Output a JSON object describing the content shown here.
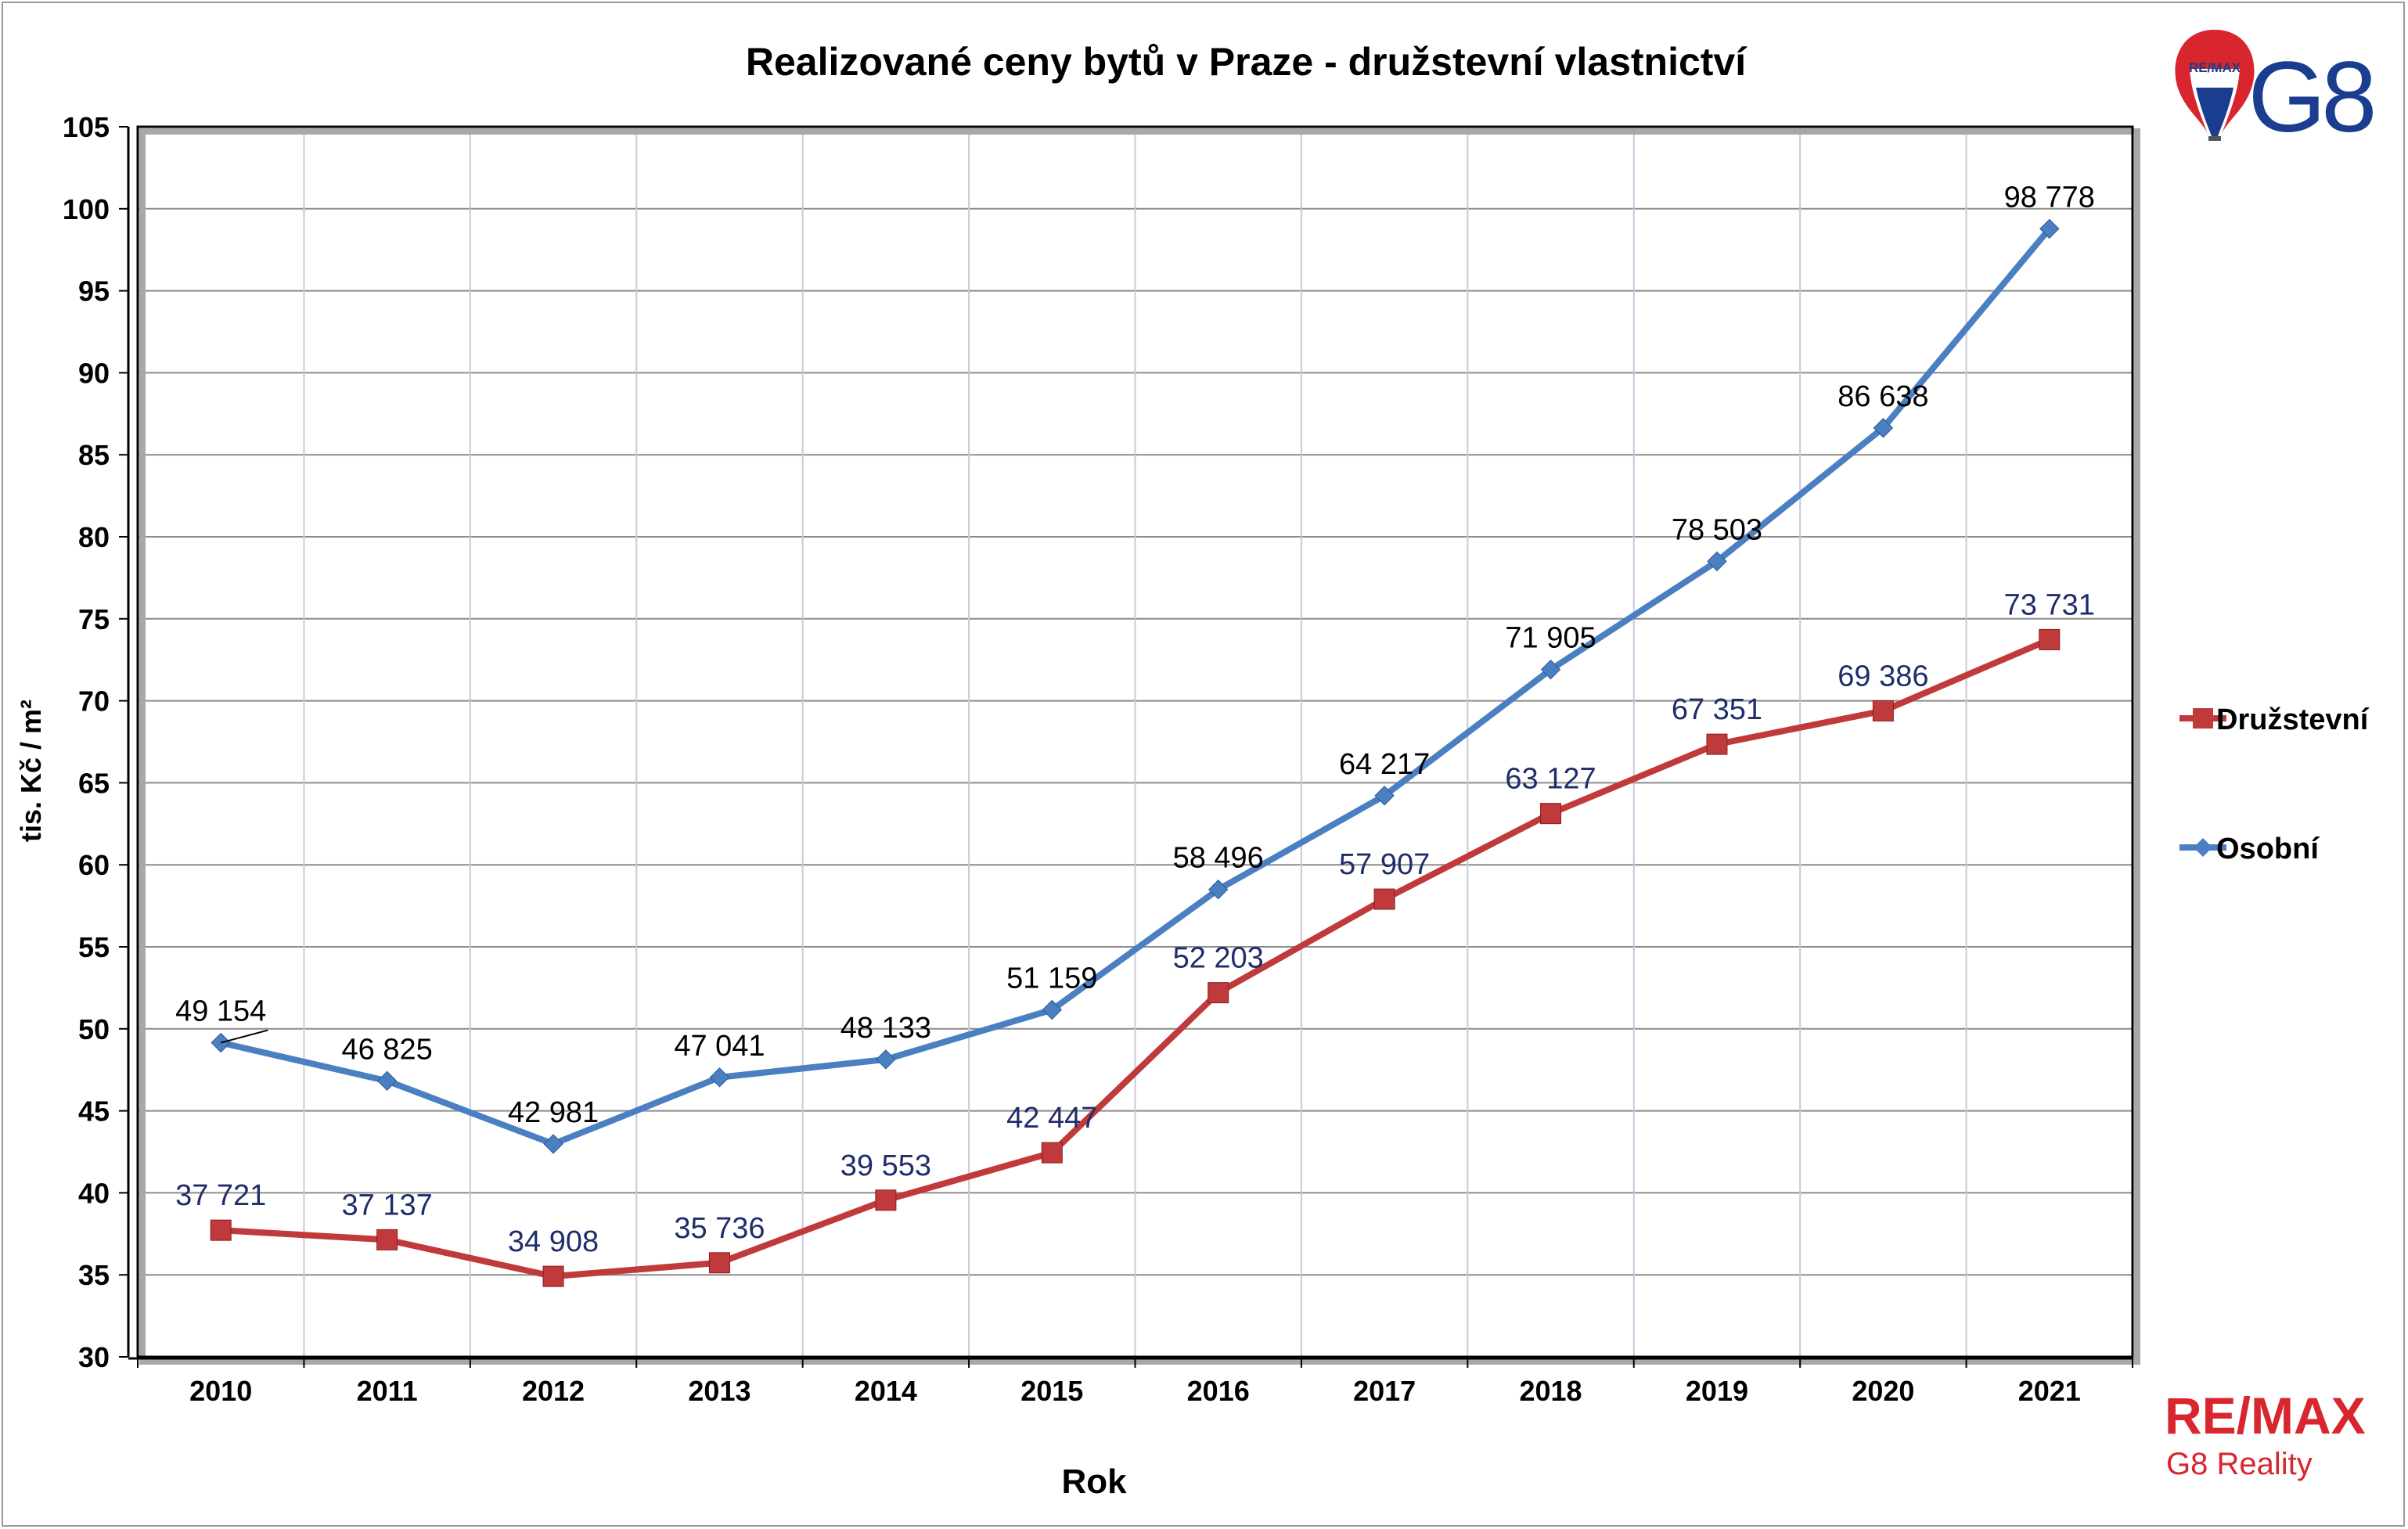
{
  "chart_data": {
    "type": "line",
    "title": "Realizované ceny bytů v Praze - družstevní vlastnictví",
    "xlabel": "Rok",
    "ylabel": "tis. Kč / m²",
    "ylim": [
      30,
      105
    ],
    "yticks": [
      30,
      35,
      40,
      45,
      50,
      55,
      60,
      65,
      70,
      75,
      80,
      85,
      90,
      95,
      100,
      105
    ],
    "categories": [
      "2010",
      "2011",
      "2012",
      "2013",
      "2014",
      "2015",
      "2016",
      "2017",
      "2018",
      "2019",
      "2020",
      "2021"
    ],
    "grid": true,
    "legend_position": "right",
    "series": [
      {
        "name": "Družstevní",
        "color": "#c0393b",
        "marker": "square",
        "values": [
          37.721,
          37.137,
          34.908,
          35.736,
          39.553,
          42.447,
          52.203,
          57.907,
          63.127,
          67.351,
          69.386,
          73.731
        ],
        "labels": [
          "37 721",
          "37 137",
          "34 908",
          "35 736",
          "39 553",
          "42 447",
          "52 203",
          "57 907",
          "63 127",
          "67 351",
          "69 386",
          "73 731"
        ],
        "label_color": "#1f2d6b"
      },
      {
        "name": "Osobní",
        "color": "#4a7fc1",
        "marker": "diamond",
        "values": [
          49.154,
          46.825,
          42.981,
          47.041,
          48.133,
          51.159,
          58.496,
          64.217,
          71.905,
          78.503,
          86.638,
          98.778
        ],
        "labels": [
          "49 154",
          "46 825",
          "42 981",
          "47 041",
          "48 133",
          "51 159",
          "58 496",
          "64 217",
          "71 905",
          "78 503",
          "86 638",
          "98 778"
        ],
        "label_color": "#000000"
      }
    ]
  },
  "branding": {
    "balloon_text": "RE/MAX",
    "g8_text": "G8",
    "remax_logo_text": "RE/MAX",
    "remax_sub_text": "G8 Reality",
    "red": "#d8252e",
    "blue": "#1b3d8f"
  }
}
